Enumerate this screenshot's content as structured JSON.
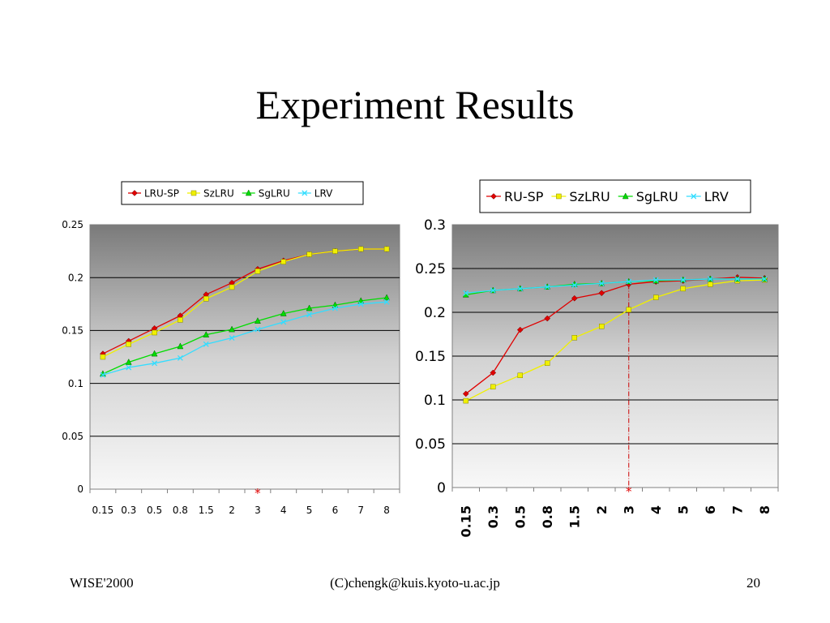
{
  "slide": {
    "title": "Experiment Results",
    "footer_left": "WISE'2000",
    "footer_center": "(C)chengk@kuis.kyoto-u.ac.jp",
    "footer_right": "20"
  },
  "colors": {
    "series": [
      "#e00000",
      "#f0f000",
      "#00dd00",
      "#33ddff"
    ],
    "marker_star": "#e00000",
    "vline": "#cc0000"
  },
  "chart_data": [
    {
      "type": "line",
      "categories": [
        "0.15",
        "0.3",
        "0.5",
        "0.8",
        "1.5",
        "2",
        "3",
        "4",
        "5",
        "6",
        "7",
        "8"
      ],
      "ylim": [
        0,
        0.25
      ],
      "yticks": [
        "0",
        "0.05",
        "0.1",
        "0.15",
        "0.2",
        "0.25"
      ],
      "grid": true,
      "legend": "top",
      "marker": {
        "label": "*",
        "category": "3"
      },
      "series": [
        {
          "name": "LRU-SP",
          "values": [
            0.128,
            0.14,
            0.152,
            0.164,
            0.184,
            0.195,
            0.208,
            0.216,
            0.222,
            0.225,
            0.227,
            0.227
          ]
        },
        {
          "name": "SzLRU",
          "values": [
            0.125,
            0.137,
            0.148,
            0.16,
            0.18,
            0.191,
            0.206,
            0.215,
            0.222,
            0.225,
            0.227,
            0.227
          ]
        },
        {
          "name": "SgLRU",
          "values": [
            0.109,
            0.12,
            0.128,
            0.135,
            0.146,
            0.151,
            0.159,
            0.166,
            0.171,
            0.174,
            0.178,
            0.181
          ]
        },
        {
          "name": "LRV",
          "values": [
            0.108,
            0.115,
            0.119,
            0.124,
            0.137,
            0.143,
            0.151,
            0.158,
            0.165,
            0.171,
            0.175,
            0.177
          ]
        }
      ]
    },
    {
      "type": "line",
      "categories": [
        "0.15",
        "0.3",
        "0.5",
        "0.8",
        "1.5",
        "2",
        "3",
        "4",
        "5",
        "6",
        "7",
        "8"
      ],
      "ylim": [
        0,
        0.3
      ],
      "yticks": [
        "0",
        "0.05",
        "0.1",
        "0.15",
        "0.2",
        "0.25",
        "0.3"
      ],
      "grid": true,
      "legend": "top",
      "marker": {
        "label": "*",
        "category": "3"
      },
      "vertical_line_at": "3",
      "series": [
        {
          "name": "RU-SP",
          "values": [
            0.107,
            0.131,
            0.18,
            0.193,
            0.216,
            0.222,
            0.232,
            0.235,
            0.236,
            0.238,
            0.24,
            0.239
          ]
        },
        {
          "name": "SzLRU",
          "values": [
            0.099,
            0.115,
            0.128,
            0.142,
            0.171,
            0.184,
            0.203,
            0.217,
            0.227,
            0.232,
            0.236,
            0.237
          ]
        },
        {
          "name": "SgLRU",
          "values": [
            0.22,
            0.225,
            0.227,
            0.229,
            0.232,
            0.233,
            0.235,
            0.236,
            0.237,
            0.238,
            0.238,
            0.238
          ]
        },
        {
          "name": "LRV",
          "values": [
            0.222,
            0.225,
            0.227,
            0.229,
            0.231,
            0.233,
            0.235,
            0.237,
            0.237,
            0.238,
            0.238,
            0.238
          ]
        }
      ]
    }
  ]
}
